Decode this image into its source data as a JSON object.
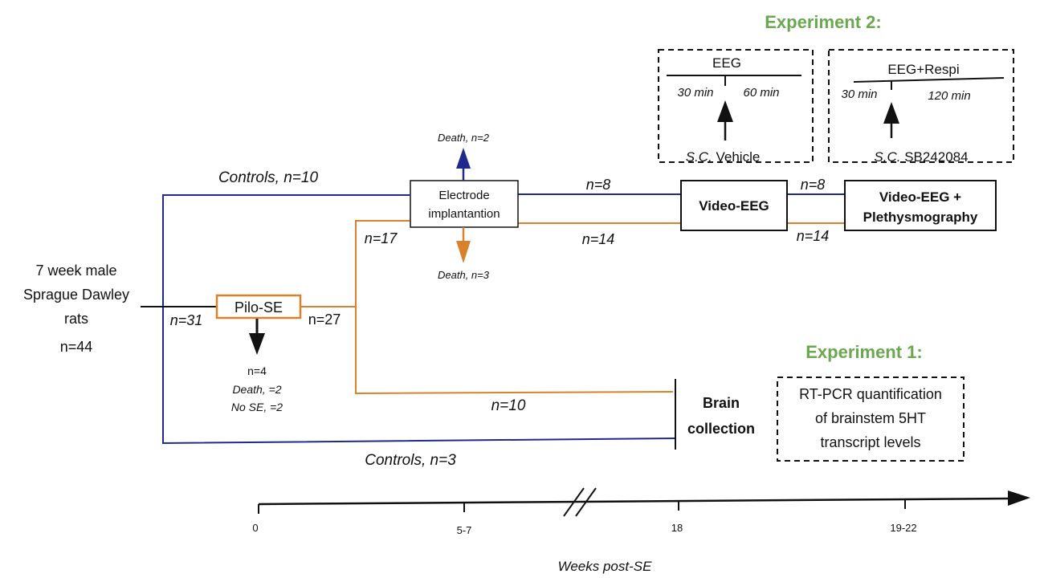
{
  "experiment2": {
    "title": "Experiment 2:",
    "left_box": {
      "label": "EEG",
      "pre_time": "30 min",
      "post_time": "60 min",
      "route": "S.C.",
      "drug": "Vehicle"
    },
    "right_box": {
      "label": "EEG+Respi",
      "pre_time": "30 min",
      "post_time": "120 min",
      "route": "S.C.",
      "drug": "SB242084"
    }
  },
  "experiment1": {
    "title": "Experiment 1:",
    "box_lines": [
      "RT-PCR quantification",
      "of brainstem 5HT",
      "transcript   levels"
    ]
  },
  "start": {
    "lines": [
      "7 week male",
      "Sprague Dawley",
      "rats",
      "n=44"
    ]
  },
  "nodes": {
    "pilo_se": "Pilo-SE",
    "electrode": [
      "Electrode",
      "implantantion"
    ],
    "video_eeg": "Video-EEG",
    "video_eeg_pleth": [
      "Video-EEG +",
      "Plethysmography"
    ],
    "brain_collection": [
      "Brain",
      "collection"
    ]
  },
  "counts": {
    "controls_top": "Controls, n=10",
    "controls_bottom": "Controls, n=3",
    "n31": "n=31",
    "n27": "n=27",
    "n17": "n=17",
    "n10": "n=10",
    "n8_a": "n=8",
    "n8_b": "n=8",
    "n14_a": "n=14",
    "n14_b": "n=14",
    "death_top": "Death, n=2",
    "death_bottom": "Death, n=3",
    "pilo_n4": "n=4",
    "pilo_death": "Death, =2",
    "pilo_no_se": "No SE, =2"
  },
  "timeline": {
    "ticks": [
      "0",
      "5-7",
      "18",
      "19-22"
    ],
    "axis_label": "Weeks post-SE"
  },
  "colors": {
    "blue": "#1f2a8c",
    "orange": "#d9822b",
    "green": "#6aa84f",
    "black": "#111111"
  }
}
